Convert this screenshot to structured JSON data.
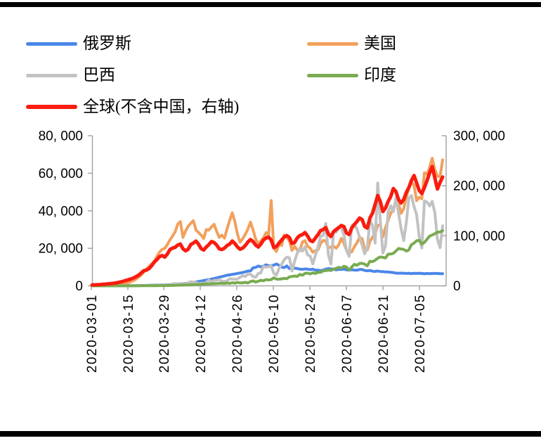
{
  "figure": {
    "background": "#ffffff",
    "border_rule_color": "#000000"
  },
  "legend": {
    "items": [
      {
        "label": "俄罗斯",
        "color": "#4A86E8"
      },
      {
        "label": "美国",
        "color": "#F2A05C"
      },
      {
        "label": "巴西",
        "color": "#C2C2C2"
      },
      {
        "label": "印度",
        "color": "#79AB50"
      },
      {
        "label": "全球(不含中国，右轴)",
        "color": "#F91C0F"
      }
    ]
  },
  "chart_data": {
    "type": "line",
    "x_range": {
      "start": "2020-03-01",
      "end": "2020-07-14",
      "interval": "daily"
    },
    "x_tick_labels": [
      "2020-03-01",
      "2020-03-15",
      "2020-03-29",
      "2020-04-12",
      "2020-04-26",
      "2020-05-10",
      "2020-05-24",
      "2020-06-07",
      "2020-06-21",
      "2020-07-05"
    ],
    "left_axis": {
      "min": 0,
      "max": 80000,
      "tick_values": [
        0,
        20000,
        40000,
        60000,
        80000
      ],
      "tick_labels": [
        "0",
        "20, 000",
        "40, 000",
        "60, 000",
        "80, 000"
      ]
    },
    "right_axis": {
      "min": 0,
      "max": 300000,
      "tick_values": [
        0,
        100000,
        200000,
        300000
      ],
      "tick_labels": [
        "0",
        "100, 000",
        "200, 000",
        "300, 000"
      ]
    },
    "grid": false,
    "legend_position": "top",
    "axis_color": "#A6A6A6",
    "series": [
      {
        "id": "russia",
        "name": "俄罗斯",
        "axis": "left",
        "color": "#4A86E8",
        "stroke_width": 4,
        "values": [
          0,
          0,
          3,
          3,
          4,
          6,
          9,
          14,
          17,
          20,
          28,
          33,
          34,
          45,
          63,
          90,
          93,
          114,
          147,
          199,
          182,
          237,
          300,
          320,
          370,
          400,
          440,
          480,
          500,
          520,
          560,
          601,
          658,
          771,
          954,
          1100,
          1250,
          1450,
          1650,
          1850,
          2050,
          2300,
          2550,
          2800,
          3050,
          3300,
          3600,
          3900,
          4250,
          4600,
          4950,
          5250,
          5650,
          5850,
          6100,
          6350,
          6600,
          6850,
          7100,
          7500,
          7900,
          7950,
          9600,
          9800,
          10600,
          10100,
          10600,
          11200,
          10700,
          10800,
          11000,
          11650,
          10900,
          10000,
          9700,
          10600,
          9200,
          9700,
          9400,
          9200,
          8900,
          8800,
          9000,
          8900,
          8600,
          8900,
          8300,
          8400,
          8100,
          8400,
          8900,
          9200,
          9000,
          8900,
          8500,
          8800,
          8700,
          8900,
          8500,
          8400,
          8600,
          8400,
          8300,
          8700,
          8700,
          8200,
          8000,
          8200,
          7800,
          7700,
          7900,
          7600,
          7600,
          7400,
          7400,
          7200,
          7100,
          6800,
          6700,
          6800,
          6700,
          6600,
          6700,
          6500,
          6700,
          6600,
          6700,
          6600,
          6400,
          6600,
          6500,
          6600,
          6600,
          6600,
          6500,
          6500
        ]
      },
      {
        "id": "us",
        "name": "美国",
        "axis": "left",
        "color": "#F2A05C",
        "stroke_width": 4,
        "values": [
          70,
          75,
          85,
          110,
          140,
          200,
          280,
          350,
          420,
          550,
          680,
          800,
          1100,
          1400,
          1700,
          2200,
          2800,
          3600,
          4700,
          5900,
          7400,
          9000,
          10500,
          11800,
          13200,
          15800,
          18000,
          19500,
          20000,
          22000,
          24500,
          26500,
          28800,
          32900,
          34200,
          25800,
          29200,
          31700,
          33300,
          34700,
          29800,
          28400,
          27100,
          25200,
          30000,
          29700,
          31400,
          32800,
          29000,
          25800,
          27000,
          25400,
          30400,
          34900,
          38900,
          34300,
          27500,
          23200,
          25100,
          27400,
          30200,
          34000,
          29800,
          25000,
          22400,
          23900,
          25600,
          28400,
          27300,
          45400,
          20100,
          18300,
          22100,
          21500,
          27100,
          25600,
          24100,
          18900,
          21100,
          19100,
          18700,
          23300,
          24100,
          21100,
          20100,
          17900,
          18700,
          19100,
          22600,
          24200,
          23900,
          20100,
          20800,
          21100,
          20100,
          21800,
          25300,
          22700,
          18900,
          17700,
          18100,
          20800,
          22900,
          25700,
          25200,
          19600,
          19100,
          23700,
          26000,
          27800,
          32300,
          32500,
          26100,
          31100,
          34800,
          38700,
          40600,
          45400,
          43700,
          38700,
          41100,
          47200,
          52200,
          55300,
          53600,
          45400,
          47200,
          46400,
          60200,
          59500,
          63300,
          68000,
          61900,
          58400,
          58200,
          67100
        ]
      },
      {
        "id": "brazil",
        "name": "巴西",
        "axis": "left",
        "color": "#C2C2C2",
        "stroke_width": 4,
        "values": [
          0,
          0,
          0,
          1,
          1,
          2,
          6,
          6,
          12,
          15,
          25,
          21,
          34,
          46,
          45,
          76,
          55,
          135,
          163,
          115,
          168,
          235,
          216,
          305,
          310,
          232,
          482,
          502,
          352,
          323,
          400,
          1100,
          1120,
          1070,
          1220,
          850,
          930,
          1660,
          2210,
          1930,
          1780,
          1090,
          1440,
          1260,
          1830,
          3060,
          2100,
          2920,
          2970,
          3260,
          2490,
          2340,
          2680,
          3740,
          3650,
          3500,
          3700,
          4600,
          5400,
          5000,
          6300,
          6200,
          5000,
          4590,
          6630,
          6940,
          10500,
          9890,
          10200,
          10600,
          6760,
          5630,
          9260,
          11400,
          13900,
          15300,
          14900,
          7940,
          13100,
          17400,
          20000,
          18500,
          20800,
          16500,
          15800,
          11700,
          16300,
          20600,
          26400,
          26900,
          33300,
          16400,
          11600,
          28900,
          28600,
          30900,
          30800,
          27100,
          18900,
          15700,
          32100,
          32900,
          30400,
          26000,
          21700,
          17100,
          20600,
          34900,
          32200,
          22800,
          54800,
          34700,
          17500,
          21400,
          39400,
          42700,
          39500,
          46900,
          38700,
          30500,
          24100,
          33800,
          46700,
          48100,
          42200,
          37900,
          26100,
          20200,
          45300,
          44600,
          42600,
          45000,
          39000,
          24800,
          20300,
          32000
        ]
      },
      {
        "id": "india",
        "name": "印度",
        "axis": "left",
        "color": "#79AB50",
        "stroke_width": 4,
        "values": [
          0,
          1,
          3,
          3,
          5,
          5,
          3,
          6,
          10,
          14,
          11,
          9,
          12,
          19,
          27,
          14,
          26,
          24,
          39,
          60,
          77,
          87,
          87,
          87,
          121,
          88,
          149,
          146,
          136,
          146,
          227,
          240,
          280,
          320,
          360,
          420,
          460,
          510,
          560,
          620,
          680,
          760,
          820,
          900,
          980,
          1060,
          1120,
          1180,
          1250,
          1320,
          1400,
          1240,
          1540,
          1290,
          1670,
          1410,
          1840,
          1610,
          1560,
          1900,
          1540,
          2290,
          2640,
          2010,
          2440,
          2960,
          2680,
          3340,
          3110,
          3280,
          4310,
          3590,
          3530,
          3720,
          3970,
          3790,
          4790,
          4990,
          5240,
          4970,
          6090,
          5610,
          6650,
          6770,
          6320,
          6980,
          6540,
          7250,
          7250,
          7960,
          8110,
          8390,
          8170,
          8910,
          9300,
          9850,
          9470,
          10440,
          9990,
          8440,
          9990,
          11460,
          10960,
          11930,
          12030,
          11500,
          10670,
          13110,
          12880,
          13590,
          14720,
          15410,
          15180,
          14820,
          16870,
          16920,
          17300,
          18550,
          19910,
          19620,
          19460,
          18520,
          19150,
          21950,
          22770,
          24020,
          24250,
          22250,
          23140,
          24880,
          26510,
          27110,
          27750,
          28640,
          28700,
          29430
        ]
      },
      {
        "id": "global_ex_china",
        "name": "全球(不含中国，右轴)",
        "axis": "right",
        "color": "#F91C0F",
        "stroke_width": 5,
        "values": [
          1700,
          1900,
          2200,
          2500,
          2900,
          3400,
          3900,
          4300,
          4900,
          5600,
          6600,
          7800,
          9200,
          10700,
          12200,
          13800,
          15700,
          18600,
          21500,
          26000,
          30500,
          31500,
          34500,
          40500,
          47500,
          52500,
          58500,
          60500,
          57500,
          63500,
          72500,
          75500,
          77000,
          81500,
          83500,
          74000,
          70000,
          73000,
          82500,
          85500,
          89500,
          83500,
          74500,
          71500,
          77500,
          82500,
          88500,
          86500,
          81500,
          74000,
          72500,
          75500,
          80500,
          83500,
          89500,
          84500,
          77500,
          73000,
          75500,
          80500,
          87500,
          92500,
          88500,
          81500,
          77500,
          83500,
          91500,
          95500,
          97500,
          91500,
          76500,
          78500,
          85500,
          91500,
          97500,
          100500,
          96500,
          84500,
          86500,
          95500,
          100500,
          102500,
          106500,
          99500,
          90500,
          88500,
          95500,
          102500,
          110500,
          112500,
          116500,
          103500,
          98500,
          108500,
          112500,
          116500,
          120500,
          118500,
          105500,
          102500,
          115500,
          122500,
          128500,
          135500,
          132500,
          118500,
          115500,
          135500,
          145500,
          162500,
          180500,
          168500,
          148500,
          155500,
          168500,
          178500,
          194500,
          188500,
          172500,
          165500,
          172500,
          186500,
          196500,
          210500,
          220500,
          205500,
          190500,
          184500,
          196500,
          210500,
          225500,
          238500,
          215500,
          193500,
          206500,
          217500
        ]
      }
    ]
  }
}
